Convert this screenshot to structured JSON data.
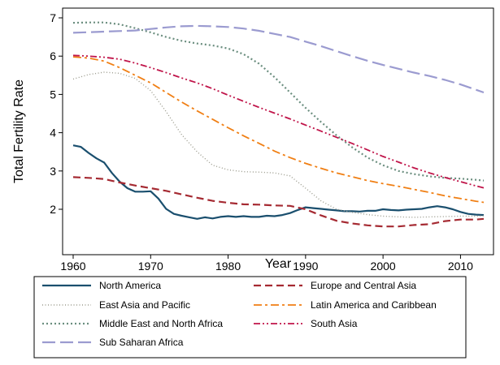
{
  "chart_data": {
    "type": "line",
    "xlabel": "Year",
    "ylabel": "Total Fertility Rate",
    "xlim": [
      1960,
      2013
    ],
    "ylim": [
      1.5,
      7.1
    ],
    "xticks": [
      "1960",
      "1970",
      "1980",
      "1990",
      "2000",
      "2010"
    ],
    "yticks": [
      "2",
      "3",
      "4",
      "5",
      "6",
      "7"
    ],
    "grid": false,
    "legend_position": "bottom",
    "series": [
      {
        "name": "North America",
        "color": "#1a4f6e",
        "dash": "",
        "width": 2.2,
        "points": [
          [
            1960,
            3.67
          ],
          [
            1961,
            3.63
          ],
          [
            1962,
            3.47
          ],
          [
            1963,
            3.33
          ],
          [
            1964,
            3.22
          ],
          [
            1965,
            2.95
          ],
          [
            1966,
            2.72
          ],
          [
            1967,
            2.55
          ],
          [
            1968,
            2.46
          ],
          [
            1969,
            2.46
          ],
          [
            1970,
            2.47
          ],
          [
            1971,
            2.28
          ],
          [
            1972,
            2.01
          ],
          [
            1973,
            1.88
          ],
          [
            1974,
            1.83
          ],
          [
            1975,
            1.79
          ],
          [
            1976,
            1.75
          ],
          [
            1977,
            1.79
          ],
          [
            1978,
            1.76
          ],
          [
            1979,
            1.8
          ],
          [
            1980,
            1.82
          ],
          [
            1981,
            1.8
          ],
          [
            1982,
            1.82
          ],
          [
            1983,
            1.8
          ],
          [
            1984,
            1.8
          ],
          [
            1985,
            1.83
          ],
          [
            1986,
            1.82
          ],
          [
            1987,
            1.85
          ],
          [
            1988,
            1.9
          ],
          [
            1989,
            1.98
          ],
          [
            1990,
            2.05
          ],
          [
            1991,
            2.03
          ],
          [
            1992,
            2.01
          ],
          [
            1993,
            1.99
          ],
          [
            1994,
            1.97
          ],
          [
            1995,
            1.95
          ],
          [
            1996,
            1.95
          ],
          [
            1997,
            1.94
          ],
          [
            1998,
            1.96
          ],
          [
            1999,
            1.96
          ],
          [
            2000,
            2.0
          ],
          [
            2001,
            1.98
          ],
          [
            2002,
            1.97
          ],
          [
            2003,
            1.99
          ],
          [
            2004,
            2.0
          ],
          [
            2005,
            2.01
          ],
          [
            2006,
            2.05
          ],
          [
            2007,
            2.08
          ],
          [
            2008,
            2.05
          ],
          [
            2009,
            2.0
          ],
          [
            2010,
            1.93
          ],
          [
            2011,
            1.88
          ],
          [
            2012,
            1.86
          ],
          [
            2013,
            1.85
          ]
        ]
      },
      {
        "name": "Europe and Central Asia",
        "color": "#a52a32",
        "dash": "9,5",
        "width": 2.2,
        "points": [
          [
            1960,
            2.84
          ],
          [
            1962,
            2.82
          ],
          [
            1964,
            2.79
          ],
          [
            1966,
            2.7
          ],
          [
            1968,
            2.62
          ],
          [
            1970,
            2.55
          ],
          [
            1972,
            2.48
          ],
          [
            1974,
            2.39
          ],
          [
            1976,
            2.3
          ],
          [
            1978,
            2.22
          ],
          [
            1980,
            2.17
          ],
          [
            1982,
            2.13
          ],
          [
            1984,
            2.12
          ],
          [
            1986,
            2.1
          ],
          [
            1988,
            2.09
          ],
          [
            1990,
            2.0
          ],
          [
            1992,
            1.84
          ],
          [
            1994,
            1.7
          ],
          [
            1996,
            1.63
          ],
          [
            1998,
            1.58
          ],
          [
            2000,
            1.55
          ],
          [
            2002,
            1.55
          ],
          [
            2004,
            1.59
          ],
          [
            2006,
            1.61
          ],
          [
            2008,
            1.69
          ],
          [
            2010,
            1.73
          ],
          [
            2012,
            1.73
          ],
          [
            2013,
            1.75
          ]
        ]
      },
      {
        "name": "East Asia and Pacific",
        "color": "#9a9a8c",
        "dash": "1,2.5",
        "width": 1.4,
        "points": [
          [
            1960,
            5.4
          ],
          [
            1962,
            5.52
          ],
          [
            1964,
            5.58
          ],
          [
            1966,
            5.55
          ],
          [
            1968,
            5.42
          ],
          [
            1970,
            5.1
          ],
          [
            1972,
            4.55
          ],
          [
            1974,
            3.95
          ],
          [
            1976,
            3.5
          ],
          [
            1978,
            3.15
          ],
          [
            1980,
            3.03
          ],
          [
            1982,
            2.98
          ],
          [
            1984,
            2.97
          ],
          [
            1986,
            2.95
          ],
          [
            1988,
            2.87
          ],
          [
            1990,
            2.55
          ],
          [
            1992,
            2.22
          ],
          [
            1994,
            2.0
          ],
          [
            1996,
            1.92
          ],
          [
            1998,
            1.86
          ],
          [
            2000,
            1.82
          ],
          [
            2002,
            1.8
          ],
          [
            2004,
            1.79
          ],
          [
            2006,
            1.8
          ],
          [
            2008,
            1.81
          ],
          [
            2010,
            1.82
          ],
          [
            2012,
            1.82
          ],
          [
            2013,
            1.83
          ]
        ]
      },
      {
        "name": "Latin America and Caribbean",
        "color": "#f07f14",
        "dash": "10,4,3,4",
        "width": 1.8,
        "points": [
          [
            1960,
            5.98
          ],
          [
            1962,
            5.95
          ],
          [
            1964,
            5.87
          ],
          [
            1966,
            5.7
          ],
          [
            1968,
            5.5
          ],
          [
            1970,
            5.3
          ],
          [
            1972,
            5.05
          ],
          [
            1974,
            4.8
          ],
          [
            1976,
            4.57
          ],
          [
            1978,
            4.35
          ],
          [
            1980,
            4.13
          ],
          [
            1982,
            3.92
          ],
          [
            1984,
            3.72
          ],
          [
            1986,
            3.52
          ],
          [
            1988,
            3.35
          ],
          [
            1990,
            3.2
          ],
          [
            1992,
            3.07
          ],
          [
            1994,
            2.95
          ],
          [
            1996,
            2.85
          ],
          [
            1998,
            2.75
          ],
          [
            2000,
            2.67
          ],
          [
            2002,
            2.6
          ],
          [
            2004,
            2.52
          ],
          [
            2006,
            2.44
          ],
          [
            2008,
            2.35
          ],
          [
            2010,
            2.28
          ],
          [
            2012,
            2.21
          ],
          [
            2013,
            2.18
          ]
        ]
      },
      {
        "name": "Middle East and North Africa",
        "color": "#6b8e7f",
        "dash": "2,3",
        "width": 2.2,
        "points": [
          [
            1960,
            6.87
          ],
          [
            1962,
            6.88
          ],
          [
            1964,
            6.88
          ],
          [
            1966,
            6.83
          ],
          [
            1968,
            6.73
          ],
          [
            1970,
            6.62
          ],
          [
            1972,
            6.5
          ],
          [
            1974,
            6.4
          ],
          [
            1976,
            6.33
          ],
          [
            1978,
            6.28
          ],
          [
            1980,
            6.2
          ],
          [
            1982,
            6.05
          ],
          [
            1984,
            5.8
          ],
          [
            1986,
            5.45
          ],
          [
            1988,
            5.05
          ],
          [
            1990,
            4.65
          ],
          [
            1992,
            4.28
          ],
          [
            1994,
            3.93
          ],
          [
            1996,
            3.62
          ],
          [
            1998,
            3.35
          ],
          [
            2000,
            3.15
          ],
          [
            2002,
            3.0
          ],
          [
            2004,
            2.92
          ],
          [
            2006,
            2.86
          ],
          [
            2008,
            2.82
          ],
          [
            2010,
            2.8
          ],
          [
            2012,
            2.77
          ],
          [
            2013,
            2.75
          ]
        ]
      },
      {
        "name": "South Asia",
        "color": "#c0154a",
        "dash": "8,3,2,3,2,3",
        "width": 1.8,
        "points": [
          [
            1960,
            6.02
          ],
          [
            1962,
            6.0
          ],
          [
            1964,
            5.97
          ],
          [
            1966,
            5.92
          ],
          [
            1968,
            5.82
          ],
          [
            1970,
            5.7
          ],
          [
            1972,
            5.57
          ],
          [
            1974,
            5.43
          ],
          [
            1976,
            5.3
          ],
          [
            1978,
            5.15
          ],
          [
            1980,
            4.98
          ],
          [
            1982,
            4.82
          ],
          [
            1984,
            4.66
          ],
          [
            1986,
            4.51
          ],
          [
            1988,
            4.36
          ],
          [
            1990,
            4.2
          ],
          [
            1992,
            4.04
          ],
          [
            1994,
            3.88
          ],
          [
            1996,
            3.72
          ],
          [
            1998,
            3.55
          ],
          [
            2000,
            3.38
          ],
          [
            2002,
            3.23
          ],
          [
            2004,
            3.08
          ],
          [
            2006,
            2.95
          ],
          [
            2008,
            2.83
          ],
          [
            2010,
            2.72
          ],
          [
            2012,
            2.61
          ],
          [
            2013,
            2.56
          ]
        ]
      },
      {
        "name": "Sub Saharan Africa",
        "color": "#9b9bd0",
        "dash": "16,6",
        "width": 2.2,
        "points": [
          [
            1960,
            6.61
          ],
          [
            1964,
            6.64
          ],
          [
            1968,
            6.67
          ],
          [
            1972,
            6.75
          ],
          [
            1974,
            6.78
          ],
          [
            1976,
            6.79
          ],
          [
            1978,
            6.78
          ],
          [
            1980,
            6.76
          ],
          [
            1982,
            6.72
          ],
          [
            1984,
            6.66
          ],
          [
            1986,
            6.58
          ],
          [
            1988,
            6.5
          ],
          [
            1990,
            6.38
          ],
          [
            1992,
            6.26
          ],
          [
            1994,
            6.13
          ],
          [
            1996,
            6.0
          ],
          [
            1998,
            5.88
          ],
          [
            2000,
            5.77
          ],
          [
            2002,
            5.67
          ],
          [
            2004,
            5.57
          ],
          [
            2006,
            5.48
          ],
          [
            2008,
            5.38
          ],
          [
            2010,
            5.26
          ],
          [
            2012,
            5.12
          ],
          [
            2013,
            5.05
          ]
        ]
      }
    ]
  }
}
